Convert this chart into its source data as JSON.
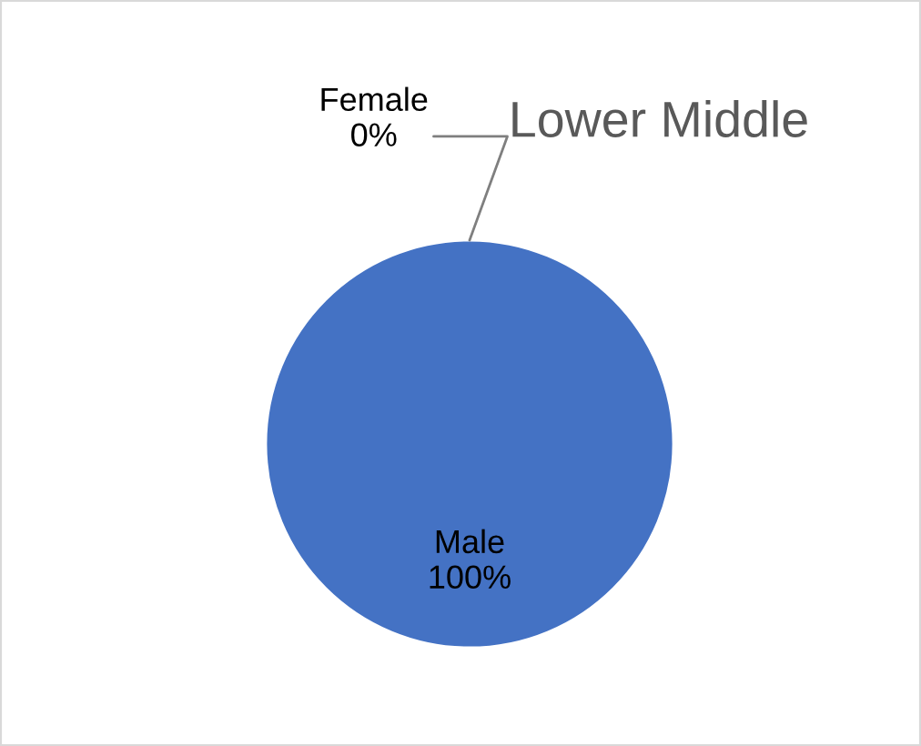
{
  "chart_data": {
    "type": "pie",
    "title": "Lower Middle",
    "categories": [
      "Female",
      "Male"
    ],
    "values": [
      0,
      100
    ],
    "colors": [
      "#ed7d31",
      "#4472c4"
    ],
    "value_labels": [
      "0%",
      "100%"
    ],
    "legend": false
  }
}
